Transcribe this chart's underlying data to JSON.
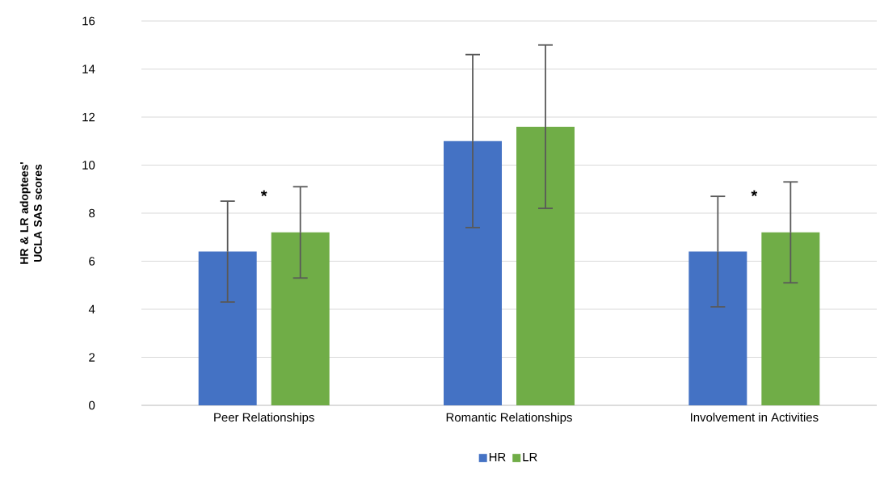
{
  "chart_data": {
    "type": "bar",
    "ylabel": "HR & LR adoptees' UCLA SAS scores",
    "categories": [
      "Peer Relationships",
      "Romantic Relationships",
      "Involvement in Activities"
    ],
    "series": [
      {
        "name": "HR",
        "color": "#4472c4",
        "values": [
          6.4,
          11.0,
          6.4
        ],
        "errors": [
          [
            4.3,
            8.5
          ],
          [
            7.4,
            14.6
          ],
          [
            4.1,
            8.7
          ]
        ]
      },
      {
        "name": "LR",
        "color": "#70ad47",
        "values": [
          7.2,
          11.6,
          7.2
        ],
        "errors": [
          [
            5.3,
            9.1
          ],
          [
            8.2,
            15.0
          ],
          [
            5.1,
            9.3
          ]
        ]
      }
    ],
    "ylim": [
      0,
      16
    ],
    "yticks": [
      0,
      2,
      4,
      6,
      8,
      10,
      12,
      14,
      16
    ],
    "grid": "y",
    "legend": "bottom",
    "annotations": [
      "*",
      "*"
    ]
  }
}
